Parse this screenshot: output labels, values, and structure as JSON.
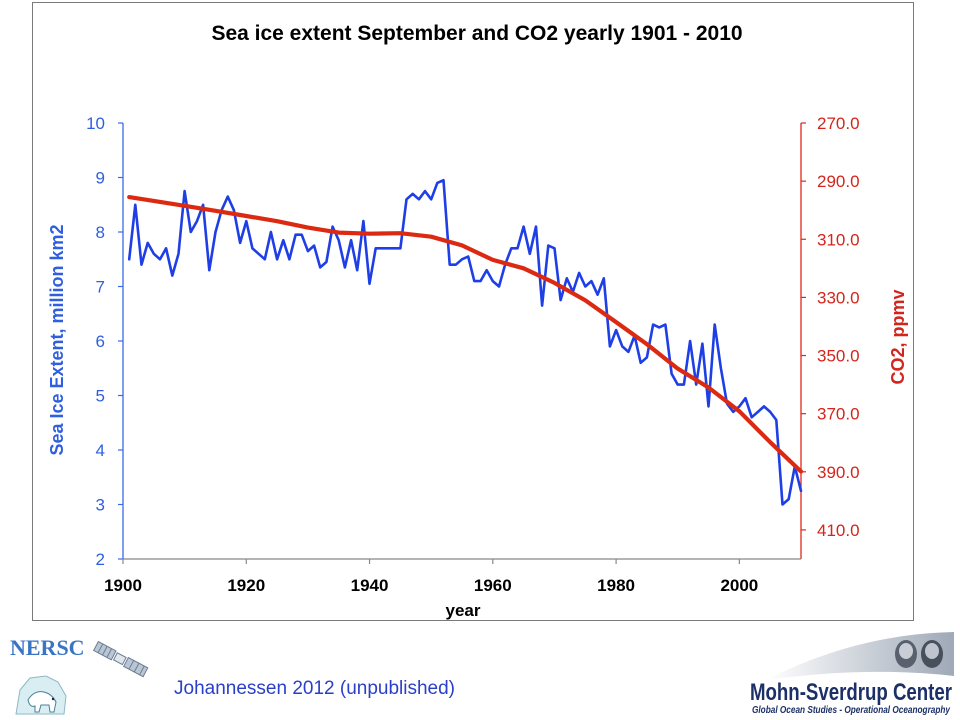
{
  "chart_data": {
    "type": "line",
    "title": "Sea ice extent September and CO2 yearly 1901 - 2010",
    "xlabel": "year",
    "ylabel_left": "Sea Ice Extent, million km2",
    "ylabel_right": "CO2, ppmv",
    "xlim": [
      1900,
      2010
    ],
    "ylim_left": [
      2,
      10
    ],
    "ylim_right": [
      270,
      420
    ],
    "right_axis_inverted": true,
    "x_ticks": [
      "1900",
      "1920",
      "1940",
      "1960",
      "1980",
      "2000"
    ],
    "y_ticks_left": [
      "2",
      "3",
      "4",
      "5",
      "6",
      "7",
      "8",
      "9",
      "10"
    ],
    "y_ticks_right": [
      "270.0",
      "290.0",
      "310.0",
      "330.0",
      "350.0",
      "370.0",
      "390.0",
      "410.0"
    ],
    "grid": false,
    "series": [
      {
        "axis": "left",
        "color": "#1f3fe6",
        "x": [
          1901,
          1902,
          1903,
          1904,
          1905,
          1906,
          1907,
          1908,
          1909,
          1910,
          1911,
          1912,
          1913,
          1914,
          1915,
          1916,
          1917,
          1918,
          1919,
          1920,
          1921,
          1922,
          1923,
          1924,
          1925,
          1926,
          1927,
          1928,
          1929,
          1930,
          1931,
          1932,
          1933,
          1934,
          1935,
          1936,
          1937,
          1938,
          1939,
          1940,
          1941,
          1942,
          1943,
          1944,
          1945,
          1946,
          1947,
          1948,
          1949,
          1950,
          1951,
          1952,
          1953,
          1954,
          1955,
          1956,
          1957,
          1958,
          1959,
          1960,
          1961,
          1962,
          1963,
          1964,
          1965,
          1966,
          1967,
          1968,
          1969,
          1970,
          1971,
          1972,
          1973,
          1974,
          1975,
          1976,
          1977,
          1978,
          1979,
          1980,
          1981,
          1982,
          1983,
          1984,
          1985,
          1986,
          1987,
          1988,
          1989,
          1990,
          1991,
          1992,
          1993,
          1994,
          1995,
          1996,
          1997,
          1998,
          1999,
          2000,
          2001,
          2002,
          2003,
          2004,
          2005,
          2006,
          2007,
          2008,
          2009,
          2010
        ],
        "values": [
          7.5,
          8.5,
          7.4,
          7.8,
          7.6,
          7.5,
          7.7,
          7.2,
          7.6,
          8.75,
          8.0,
          8.2,
          8.5,
          7.3,
          8.0,
          8.4,
          8.65,
          8.4,
          7.8,
          8.2,
          7.7,
          7.6,
          7.5,
          8.0,
          7.5,
          7.85,
          7.5,
          7.95,
          7.95,
          7.65,
          7.75,
          7.35,
          7.45,
          8.1,
          7.85,
          7.35,
          7.85,
          7.3,
          8.2,
          7.05,
          7.7,
          7.7,
          7.7,
          7.7,
          7.7,
          8.6,
          8.7,
          8.6,
          8.75,
          8.6,
          8.9,
          8.95,
          7.4,
          7.4,
          7.5,
          7.55,
          7.1,
          7.1,
          7.3,
          7.1,
          7.0,
          7.4,
          7.7,
          7.7,
          8.1,
          7.6,
          8.1,
          6.65,
          7.75,
          7.7,
          6.75,
          7.15,
          6.9,
          7.25,
          7.0,
          7.1,
          6.85,
          7.15,
          5.9,
          6.2,
          5.9,
          5.8,
          6.1,
          5.6,
          5.7,
          6.3,
          6.25,
          6.3,
          5.4,
          5.2,
          5.2,
          6.0,
          5.2,
          5.95,
          4.8,
          6.3,
          5.5,
          4.85,
          4.7,
          4.8,
          4.95,
          4.6,
          4.7,
          4.8,
          4.7,
          4.55,
          3.0,
          3.1,
          3.7,
          3.25
        ]
      },
      {
        "axis": "right",
        "color": "#dc2a12",
        "x": [
          1901,
          1905,
          1910,
          1915,
          1920,
          1925,
          1930,
          1935,
          1940,
          1945,
          1950,
          1955,
          1960,
          1965,
          1970,
          1975,
          1980,
          1985,
          1990,
          1995,
          2000,
          2005,
          2010
        ],
        "values": [
          295.5,
          296.8,
          298.5,
          300.2,
          302.0,
          303.8,
          306.0,
          307.7,
          308.1,
          307.9,
          309.1,
          312.1,
          317.1,
          320.0,
          325.0,
          331.0,
          338.5,
          346.1,
          354.5,
          361.0,
          369.2,
          379.8,
          389.9
        ]
      }
    ]
  },
  "footer": {
    "credit": "Johannessen 2012 (unpublished)",
    "left_logo_text": "NERSC",
    "right_logo_title": "Mohn-Sverdrup Center",
    "right_logo_subtitle": "Global Ocean Studies - Operational Oceanography"
  }
}
